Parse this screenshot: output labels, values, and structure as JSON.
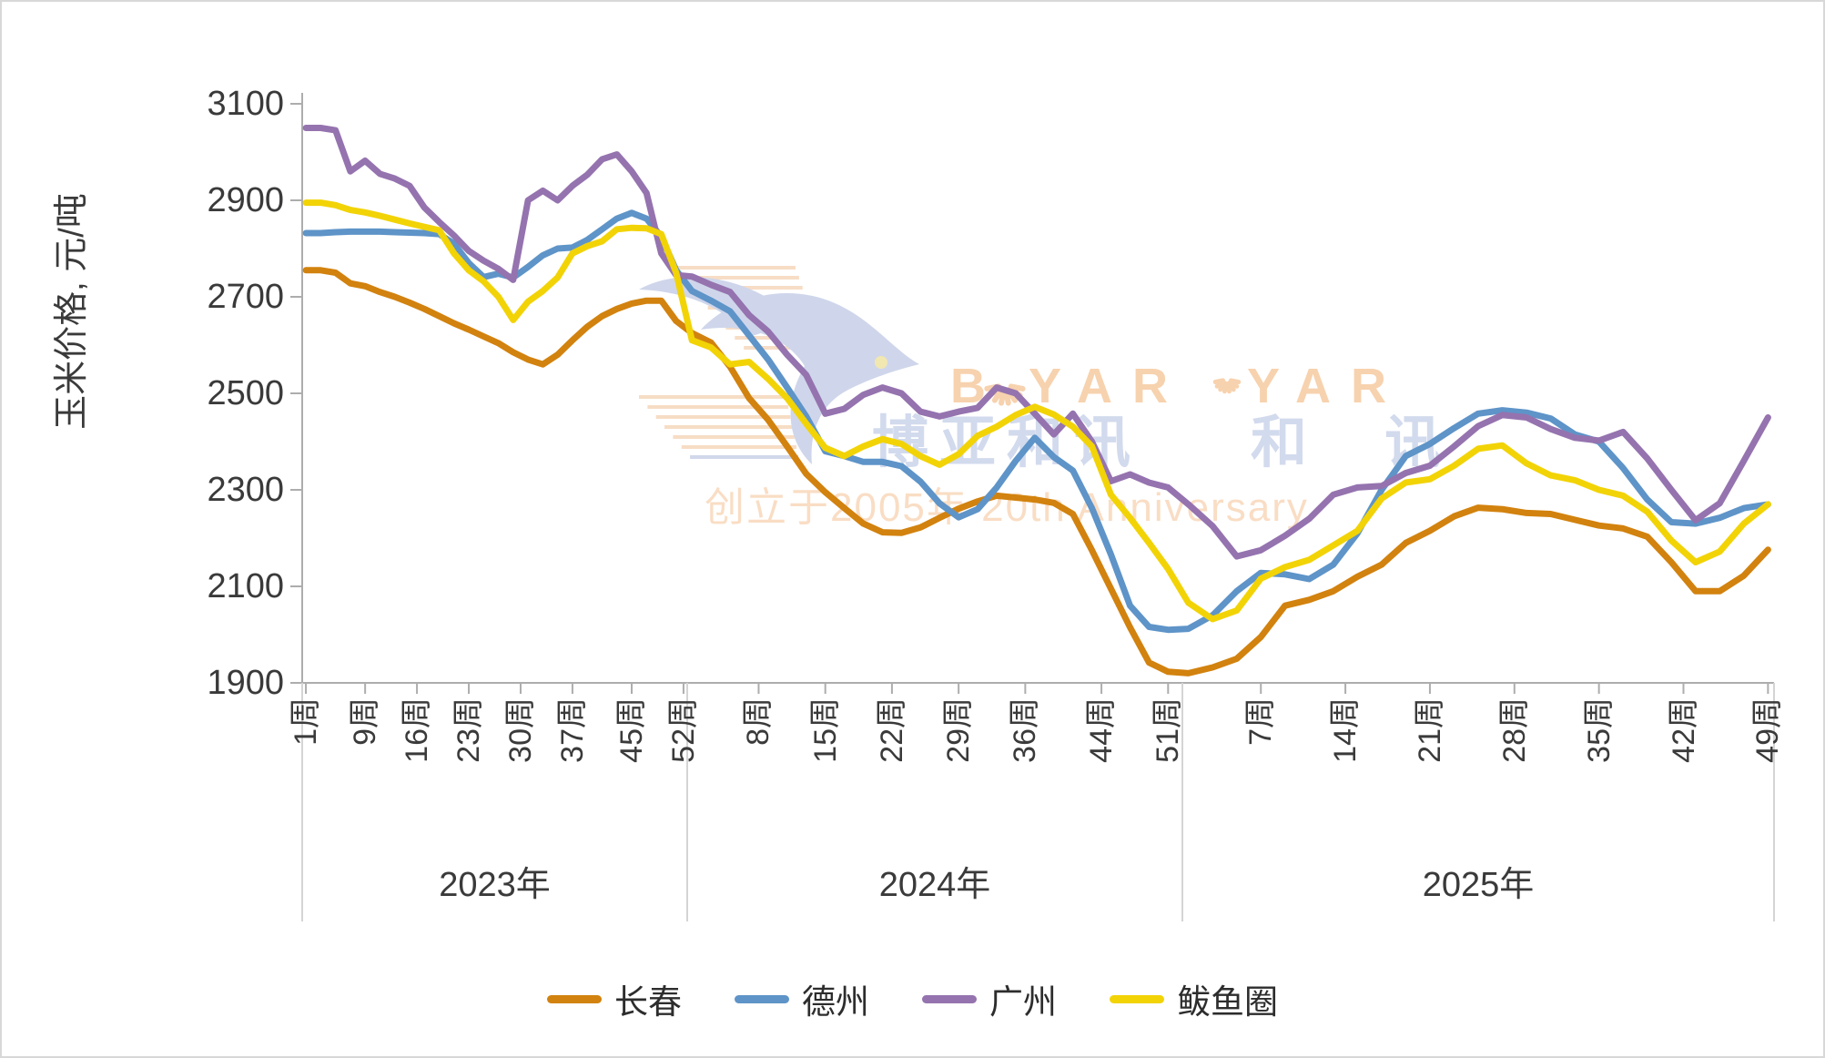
{
  "watermark": {
    "brand_b": "B",
    "brand_yar": "YAR",
    "brand_yar_partial": "YAR",
    "brand_cn": "博亚和讯",
    "brand_cn_partial": "和 讯",
    "tagline": "创立于2005年 20th Anniversary"
  },
  "chart_data": {
    "type": "line",
    "title": "",
    "ylabel": "玉米价格, 元/吨",
    "ylim": [
      1900,
      3100
    ],
    "y_ticks": [
      1900,
      2100,
      2300,
      2500,
      2700,
      2900,
      3100
    ],
    "x_unit_suffix": "周",
    "grid": false,
    "legend_position": "bottom",
    "years": [
      {
        "label": "2023年",
        "weeks": 52,
        "tick_weeks": [
          1,
          9,
          16,
          23,
          30,
          37,
          45,
          52
        ]
      },
      {
        "label": "2024年",
        "weeks": 52,
        "tick_weeks": [
          8,
          15,
          22,
          29,
          36,
          44,
          51
        ]
      },
      {
        "label": "2025年",
        "weeks": 49,
        "tick_weeks": [
          7,
          14,
          21,
          28,
          35,
          42,
          49
        ]
      }
    ],
    "sample_week_step": 2,
    "series": [
      {
        "name": "长春",
        "color": "#D2820E",
        "values_by_year": {
          "2023": [
            2755,
            2755,
            2750,
            2728,
            2722,
            2710,
            2700,
            2688,
            2675,
            2660,
            2645,
            2632,
            2618,
            2604,
            2585,
            2570,
            2560,
            2580,
            2610,
            2638,
            2660,
            2675,
            2686,
            2692,
            2692,
            2650
          ],
          "2024": [
            2625,
            2605,
            2555,
            2490,
            2445,
            2390,
            2333,
            2295,
            2262,
            2230,
            2212,
            2211,
            2222,
            2242,
            2261,
            2276,
            2288,
            2284,
            2280,
            2273,
            2250,
            2175,
            2095,
            2015,
            1942,
            1923
          ],
          "2025": [
            1920,
            1932,
            1950,
            1995,
            2060,
            2072,
            2090,
            2120,
            2145,
            2190,
            2215,
            2245,
            2263,
            2260,
            2252,
            2250,
            2238,
            2226,
            2220,
            2203,
            2150,
            2090,
            2090,
            2122,
            2176
          ]
        }
      },
      {
        "name": "德州",
        "color": "#5E94C8",
        "values_by_year": {
          "2023": [
            2832,
            2832,
            2834,
            2835,
            2835,
            2835,
            2834,
            2833,
            2832,
            2830,
            2810,
            2770,
            2741,
            2748,
            2740,
            2762,
            2786,
            2800,
            2802,
            2818,
            2840,
            2862,
            2874,
            2862,
            2825,
            2755
          ],
          "2024": [
            2712,
            2692,
            2670,
            2620,
            2570,
            2512,
            2452,
            2380,
            2370,
            2358,
            2358,
            2349,
            2317,
            2272,
            2243,
            2260,
            2305,
            2360,
            2408,
            2368,
            2340,
            2262,
            2166,
            2060,
            2016,
            2010
          ],
          "2025": [
            2012,
            2040,
            2090,
            2128,
            2125,
            2115,
            2145,
            2210,
            2300,
            2370,
            2395,
            2428,
            2458,
            2465,
            2460,
            2448,
            2415,
            2400,
            2345,
            2280,
            2233,
            2230,
            2242,
            2262,
            2270
          ]
        }
      },
      {
        "name": "广州",
        "color": "#9573AF",
        "values_by_year": {
          "2023": [
            3050,
            3050,
            3045,
            2960,
            2982,
            2955,
            2945,
            2930,
            2885,
            2855,
            2827,
            2795,
            2775,
            2758,
            2735,
            2900,
            2920,
            2900,
            2930,
            2953,
            2985,
            2995,
            2960,
            2915,
            2790,
            2745
          ],
          "2024": [
            2742,
            2725,
            2710,
            2662,
            2628,
            2580,
            2538,
            2458,
            2468,
            2497,
            2512,
            2500,
            2462,
            2452,
            2462,
            2470,
            2512,
            2500,
            2458,
            2415,
            2458,
            2400,
            2318,
            2332,
            2315,
            2305
          ],
          "2025": [
            2270,
            2225,
            2162,
            2175,
            2205,
            2240,
            2290,
            2305,
            2308,
            2335,
            2350,
            2390,
            2432,
            2455,
            2450,
            2426,
            2408,
            2402,
            2420,
            2365,
            2300,
            2237,
            2272,
            2360,
            2450
          ]
        }
      },
      {
        "name": "鲅鱼圈",
        "color": "#F2D306",
        "values_by_year": {
          "2023": [
            2895,
            2895,
            2890,
            2880,
            2875,
            2868,
            2860,
            2852,
            2845,
            2838,
            2790,
            2755,
            2732,
            2700,
            2652,
            2690,
            2712,
            2740,
            2790,
            2805,
            2815,
            2840,
            2843,
            2842,
            2830,
            2750
          ],
          "2024": [
            2610,
            2595,
            2560,
            2565,
            2530,
            2490,
            2437,
            2387,
            2370,
            2390,
            2405,
            2395,
            2370,
            2352,
            2374,
            2412,
            2431,
            2455,
            2472,
            2456,
            2431,
            2390,
            2290,
            2242,
            2190,
            2136
          ],
          "2025": [
            2066,
            2032,
            2050,
            2116,
            2140,
            2155,
            2185,
            2215,
            2282,
            2315,
            2322,
            2350,
            2385,
            2392,
            2355,
            2330,
            2320,
            2300,
            2288,
            2255,
            2195,
            2150,
            2172,
            2230,
            2270
          ]
        }
      }
    ]
  }
}
